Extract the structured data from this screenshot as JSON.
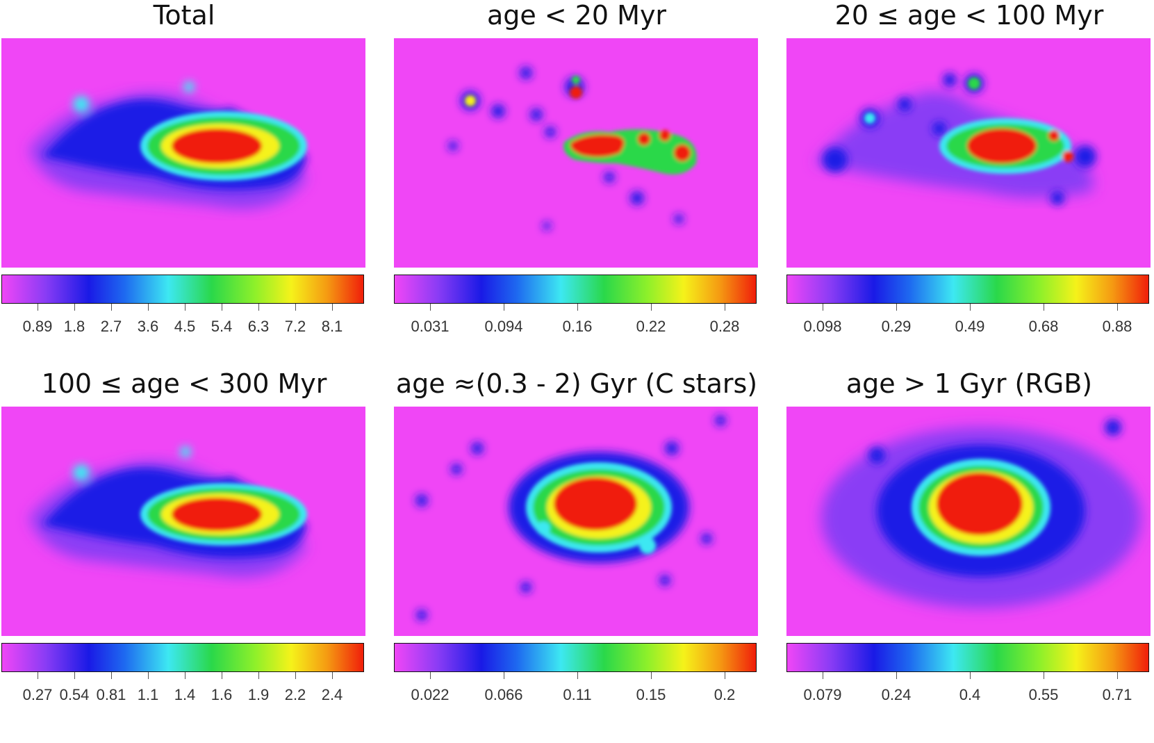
{
  "figure": {
    "colormap": [
      "#f046f6",
      "#8a3cf5",
      "#1a1ae6",
      "#1e6af0",
      "#3de8f2",
      "#2ad84a",
      "#8ef02a",
      "#f5f21a",
      "#f59a12",
      "#f01e0a"
    ],
    "panels": [
      {
        "title": "Total",
        "ticks": [
          "0.89",
          "1.8",
          "2.7",
          "3.6",
          "4.5",
          "5.4",
          "6.3",
          "7.2",
          "8.1"
        ]
      },
      {
        "title": "age < 20 Myr",
        "ticks": [
          "0.031",
          "0.094",
          "0.16",
          "0.22",
          "0.28"
        ]
      },
      {
        "title": "20 ≤ age < 100 Myr",
        "ticks": [
          "0.098",
          "0.29",
          "0.49",
          "0.68",
          "0.88"
        ]
      },
      {
        "title": "100 ≤ age < 300 Myr",
        "ticks": [
          "0.27",
          "0.54",
          "0.81",
          "1.1",
          "1.4",
          "1.6",
          "1.9",
          "2.2",
          "2.4"
        ]
      },
      {
        "title": "age ≈(0.3 - 2) Gyr (C stars)",
        "ticks": [
          "0.022",
          "0.066",
          "0.11",
          "0.15",
          "0.2"
        ]
      },
      {
        "title": "age > 1 Gyr (RGB)",
        "ticks": [
          "0.079",
          "0.24",
          "0.4",
          "0.55",
          "0.71"
        ]
      }
    ]
  }
}
